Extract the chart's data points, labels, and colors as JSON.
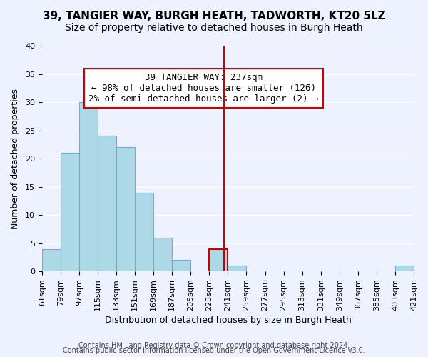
{
  "title_line1": "39, TANGIER WAY, BURGH HEATH, TADWORTH, KT20 5LZ",
  "title_line2": "Size of property relative to detached houses in Burgh Heath",
  "xlabel": "Distribution of detached houses by size in Burgh Heath",
  "ylabel": "Number of detached properties",
  "bin_edges": [
    61,
    79,
    97,
    115,
    133,
    151,
    169,
    187,
    205,
    223,
    241,
    259,
    277,
    295,
    313,
    331,
    349,
    367,
    385,
    403,
    421
  ],
  "counts": [
    4,
    21,
    30,
    24,
    22,
    14,
    6,
    2,
    0,
    4,
    1,
    0,
    0,
    0,
    0,
    0,
    0,
    0,
    0,
    1
  ],
  "bar_color": "#add8e6",
  "bar_edge_color": "#6ab0d4",
  "highlight_bar_edge_color": "#cc0000",
  "vline_x": 237,
  "vline_color": "#cc0000",
  "annotation_title": "39 TANGIER WAY: 237sqm",
  "annotation_line1": "← 98% of detached houses are smaller (126)",
  "annotation_line2": "2% of semi-detached houses are larger (2) →",
  "ylim": [
    0,
    40
  ],
  "yticks": [
    0,
    5,
    10,
    15,
    20,
    25,
    30,
    35,
    40
  ],
  "footnote1": "Contains HM Land Registry data © Crown copyright and database right 2024.",
  "footnote2": "Contains public sector information licensed under the Open Government Licence v3.0.",
  "background_color": "#eef2ff",
  "grid_color": "#ffffff",
  "title_fontsize": 11,
  "subtitle_fontsize": 10,
  "axis_label_fontsize": 9,
  "tick_fontsize": 8,
  "annotation_fontsize": 9,
  "footnote_fontsize": 7
}
